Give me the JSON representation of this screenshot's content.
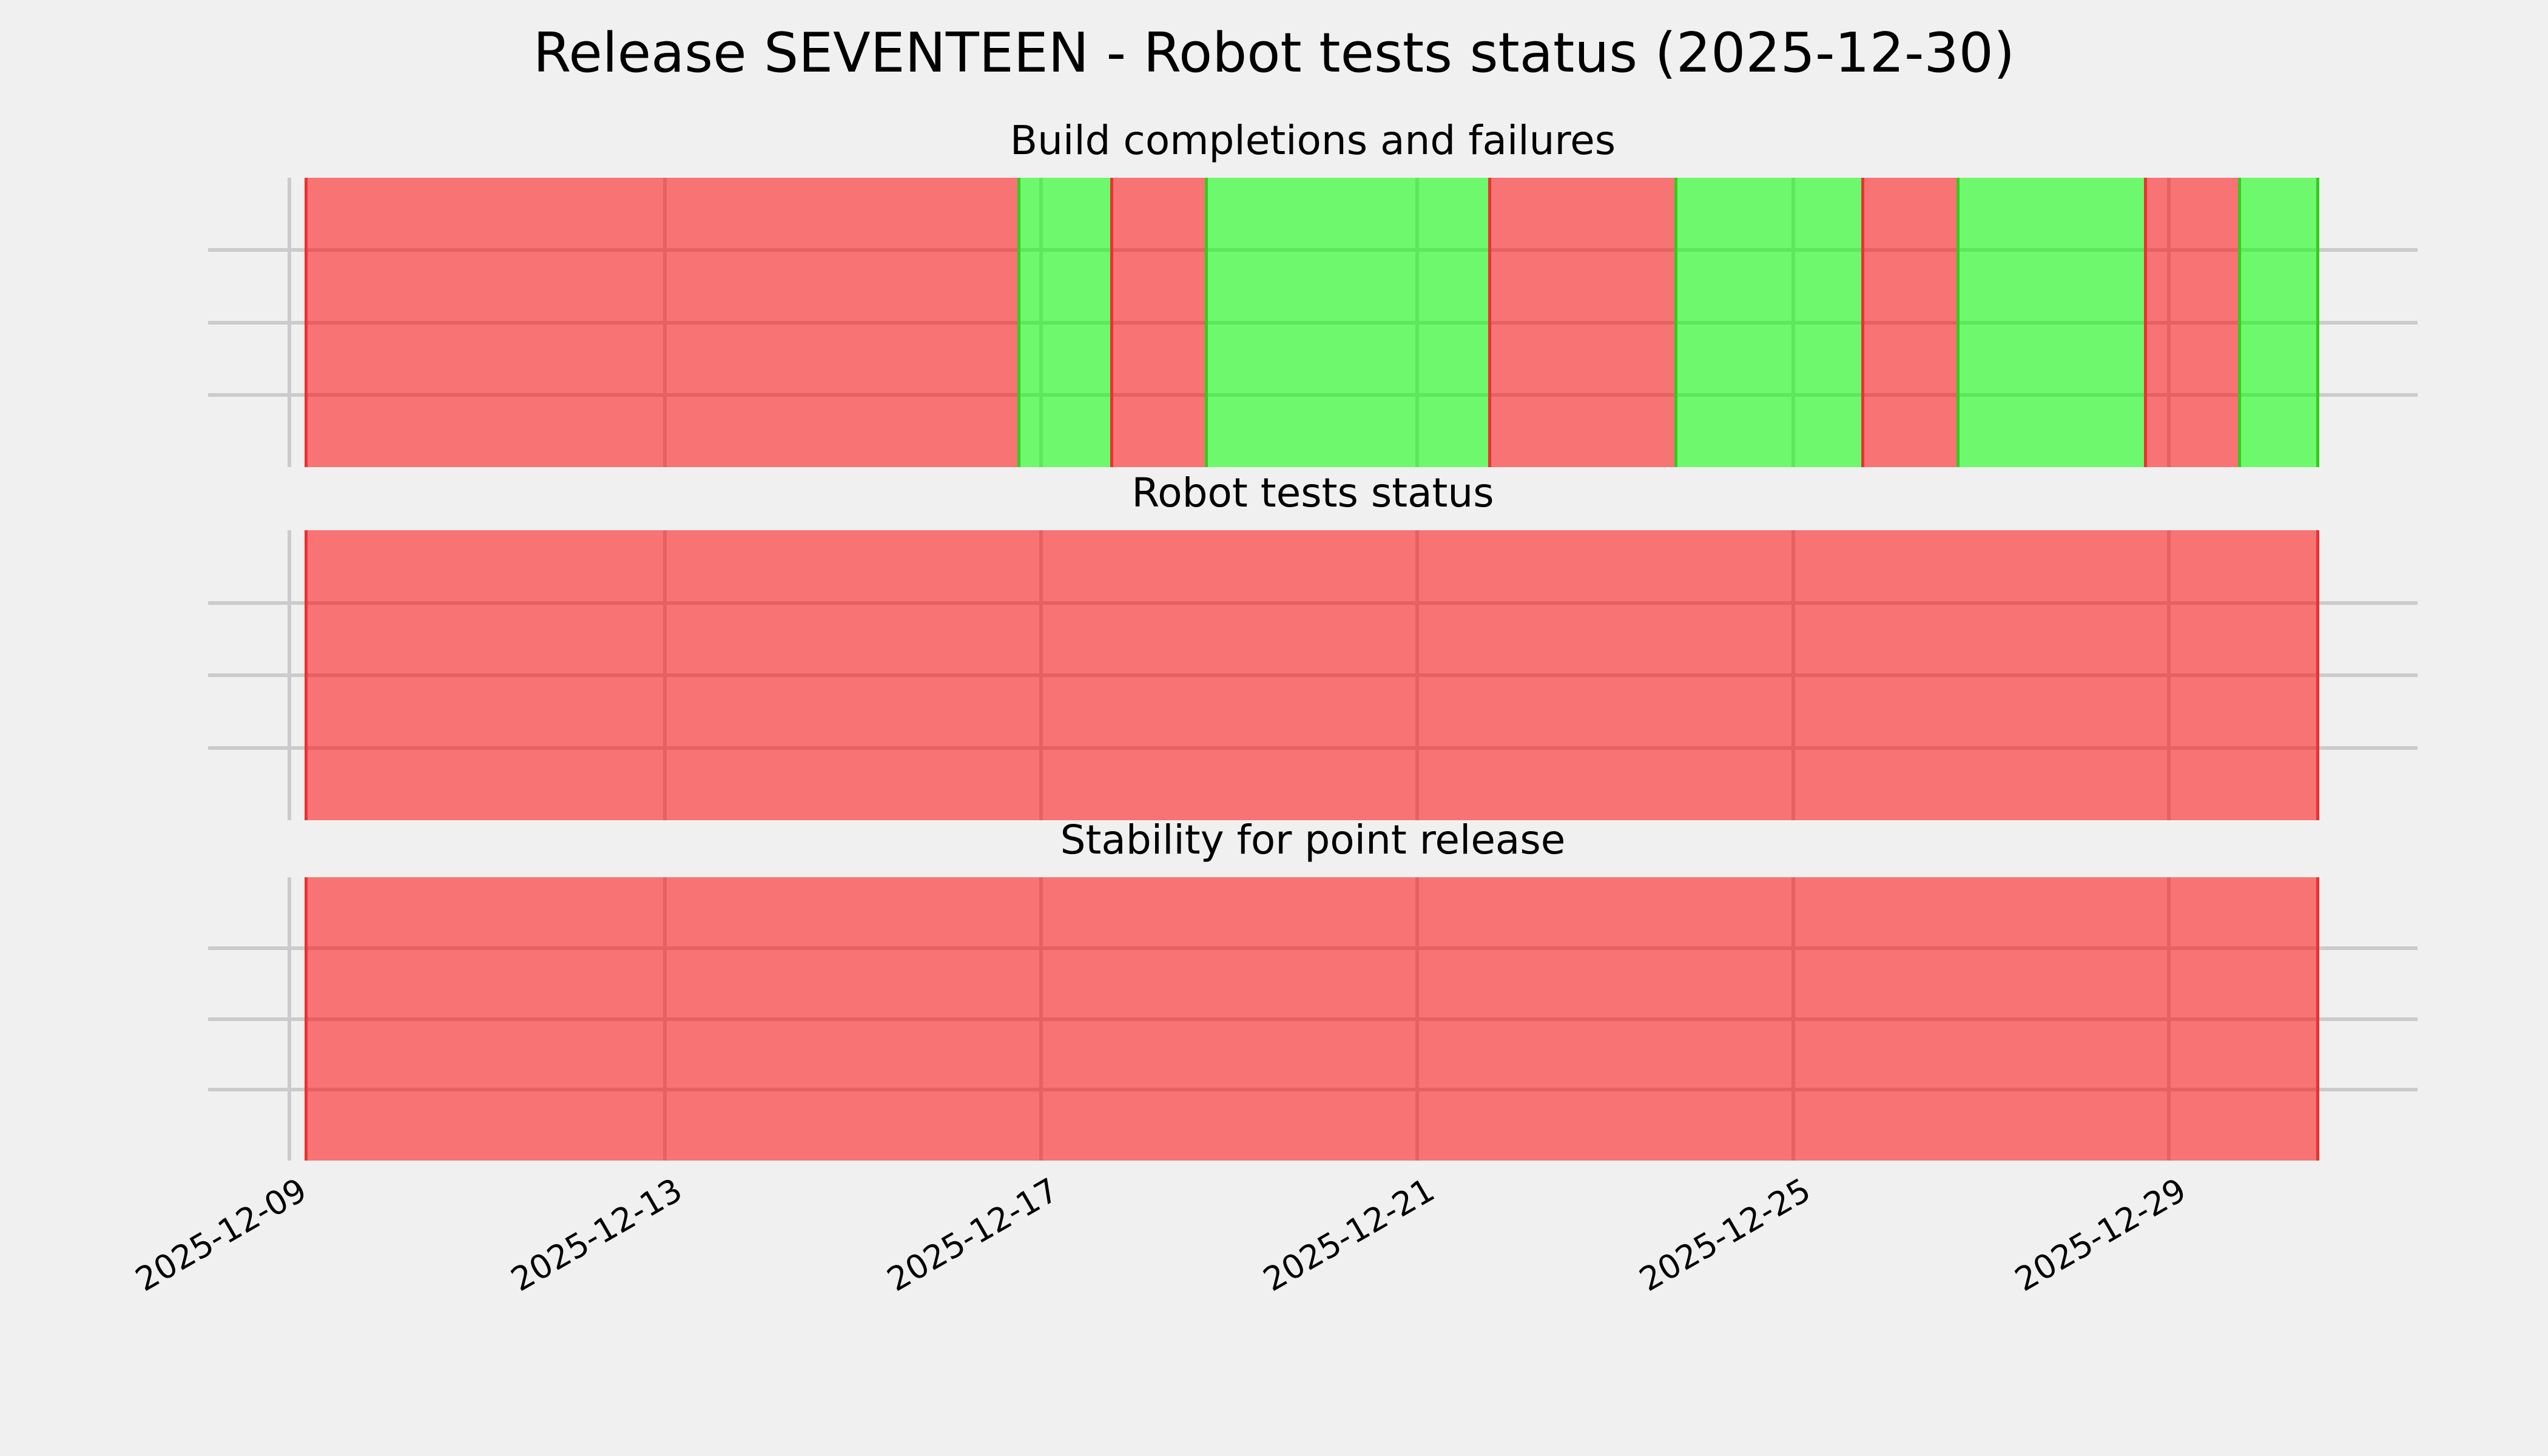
{
  "figure": {
    "title": "Release SEVENTEEN - Robot tests status (2025-12-30)",
    "background": "#f0f0f0"
  },
  "colors": {
    "failure_fill": "rgba(255,0,0,0.52)",
    "success_fill": "rgba(0,255,0,0.54)",
    "failure_edge": "#ea3232",
    "success_edge": "#34cc1e",
    "grid": "#cbcbcb",
    "text": "#000000"
  },
  "x_axis": {
    "ticks": [
      {
        "label": "2025-12-09",
        "frac": 3.68
      },
      {
        "label": "2025-12-13",
        "frac": 20.67
      },
      {
        "label": "2025-12-17",
        "frac": 37.7
      },
      {
        "label": "2025-12-21",
        "frac": 54.72
      },
      {
        "label": "2025-12-25",
        "frac": 71.75
      },
      {
        "label": "2025-12-29",
        "frac": 88.74
      }
    ],
    "range_start": "2025-12-09 04:00",
    "range_end": "2025-12-30 15:00",
    "rotation_deg": -30
  },
  "y_axis": {
    "labels": [],
    "gridline_fracs": [
      25,
      50,
      75
    ]
  },
  "chart_data": [
    {
      "type": "area",
      "subtype": "status-timeline",
      "title": "Build completions and failures",
      "segments": [
        {
          "status": "failure",
          "start": "2025-12-09 04:00",
          "end": "2025-12-16 18:00",
          "start_frac": 0.0,
          "end_frac": 35.38
        },
        {
          "status": "success",
          "start": "2025-12-16 18:00",
          "end": "2025-12-17 17:45",
          "start_frac": 35.38,
          "end_frac": 39.99
        },
        {
          "status": "failure",
          "start": "2025-12-17 17:45",
          "end": "2025-12-18 18:00",
          "start_frac": 39.99,
          "end_frac": 44.68
        },
        {
          "status": "success",
          "start": "2025-12-18 18:00",
          "end": "2025-12-21 17:45",
          "start_frac": 44.68,
          "end_frac": 58.75
        },
        {
          "status": "failure",
          "start": "2025-12-21 17:45",
          "end": "2025-12-23 18:00",
          "start_frac": 58.75,
          "end_frac": 67.99
        },
        {
          "status": "success",
          "start": "2025-12-23 18:00",
          "end": "2025-12-25 17:45",
          "start_frac": 67.99,
          "end_frac": 77.27
        },
        {
          "status": "failure",
          "start": "2025-12-25 17:45",
          "end": "2025-12-26 18:00",
          "start_frac": 77.27,
          "end_frac": 81.99
        },
        {
          "status": "success",
          "start": "2025-12-26 18:00",
          "end": "2025-12-28 18:00",
          "start_frac": 81.99,
          "end_frac": 91.3
        },
        {
          "status": "failure",
          "start": "2025-12-28 18:00",
          "end": "2025-12-29 18:00",
          "start_frac": 91.3,
          "end_frac": 95.97
        },
        {
          "status": "success",
          "start": "2025-12-29 18:00",
          "end": "2025-12-30 15:00",
          "start_frac": 95.97,
          "end_frac": 100.0
        }
      ]
    },
    {
      "type": "area",
      "subtype": "status-timeline",
      "title": "Robot tests status",
      "segments": [
        {
          "status": "failure",
          "start": "2025-12-09 04:00",
          "end": "2025-12-30 15:00",
          "start_frac": 0.0,
          "end_frac": 100.0
        }
      ]
    },
    {
      "type": "area",
      "subtype": "status-timeline",
      "title": "Stability for point release",
      "segments": [
        {
          "status": "failure",
          "start": "2025-12-09 04:00",
          "end": "2025-12-30 15:00",
          "start_frac": 0.0,
          "end_frac": 100.0
        }
      ]
    }
  ]
}
